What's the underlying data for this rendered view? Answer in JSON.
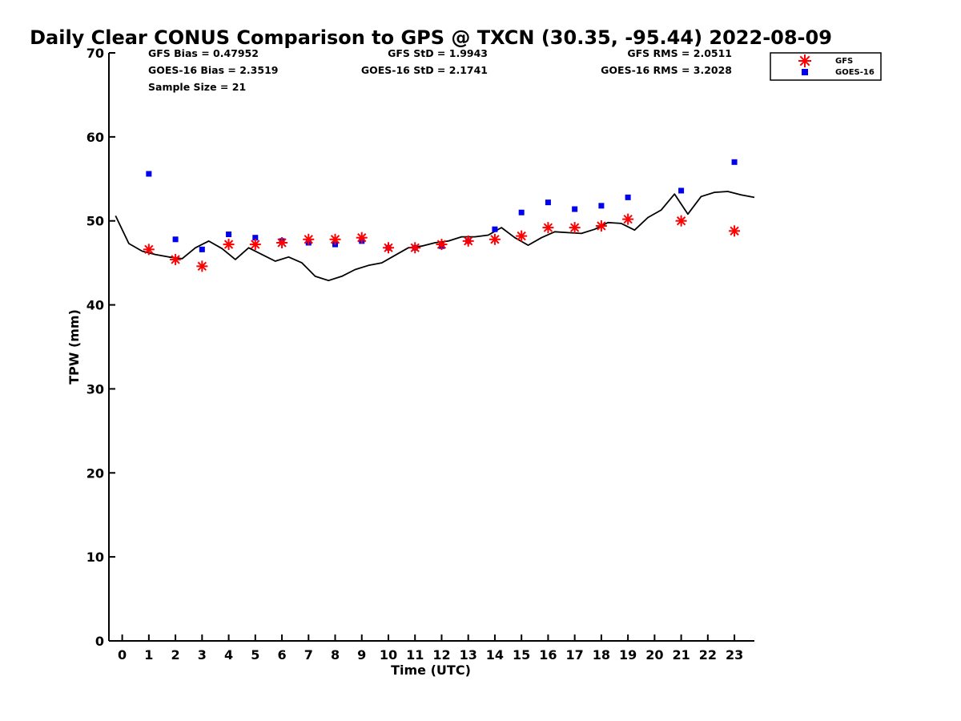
{
  "chart_data": {
    "type": "scatter",
    "title": "Daily Clear CONUS Comparison to GPS @ TXCN (30.35, -95.44) 2022-08-09",
    "xlabel": "Time (UTC)",
    "ylabel": "TPW (mm)",
    "xlim": [
      -0.5,
      23.75
    ],
    "ylim": [
      0,
      70
    ],
    "x_ticks": [
      0,
      1,
      2,
      3,
      4,
      5,
      6,
      7,
      8,
      9,
      10,
      11,
      12,
      13,
      14,
      15,
      16,
      17,
      18,
      19,
      20,
      21,
      22,
      23
    ],
    "y_ticks": [
      0,
      10,
      20,
      30,
      40,
      50,
      60,
      70
    ],
    "grid": false,
    "legend_position": "top-right",
    "stats": {
      "gfs_bias": "GFS Bias = 0.47952",
      "goes_bias": "GOES-16 Bias = 2.3519",
      "sample_size": "Sample Size = 21",
      "gfs_std": "GFS StD = 1.9943",
      "goes_std": "GOES-16 StD = 2.1741",
      "gfs_rms": "GFS RMS = 2.0511",
      "goes_rms": "GOES-16 RMS = 3.2028"
    },
    "series": [
      {
        "name": "GFS",
        "marker": "asterisk",
        "color": "#ff0000",
        "x": [
          1,
          2,
          3,
          4,
          5,
          6,
          7,
          8,
          9,
          10,
          11,
          12,
          13,
          14,
          15,
          16,
          17,
          18,
          19,
          21,
          23
        ],
        "y": [
          46.6,
          45.4,
          44.6,
          47.2,
          47.2,
          47.4,
          47.8,
          47.8,
          48.0,
          46.8,
          46.8,
          47.2,
          47.6,
          47.8,
          48.2,
          49.2,
          49.2,
          49.4,
          50.2,
          50.0,
          48.8
        ]
      },
      {
        "name": "GOES-16",
        "marker": "square",
        "color": "#0000ee",
        "x": [
          1,
          2,
          3,
          4,
          5,
          6,
          7,
          8,
          9,
          10,
          11,
          12,
          13,
          14,
          15,
          16,
          17,
          18,
          19,
          21,
          23
        ],
        "y": [
          55.6,
          47.8,
          46.6,
          48.4,
          48.0,
          47.6,
          47.4,
          47.2,
          47.6,
          46.8,
          46.8,
          47.0,
          47.6,
          49.0,
          51.0,
          52.2,
          51.4,
          51.8,
          52.8,
          53.6,
          57.0
        ]
      },
      {
        "type": "line",
        "color": "#000000",
        "x": [
          -0.25,
          0.25,
          0.75,
          1.25,
          1.75,
          2.25,
          2.75,
          3.25,
          3.75,
          4.25,
          4.75,
          5.25,
          5.75,
          6.25,
          6.75,
          7.25,
          7.75,
          8.25,
          8.75,
          9.25,
          9.75,
          10.25,
          10.75,
          11.25,
          11.75,
          12.25,
          12.75,
          13.25,
          13.75,
          14.25,
          14.75,
          15.25,
          15.75,
          16.25,
          16.75,
          17.25,
          17.75,
          18.25,
          18.75,
          19.25,
          19.75,
          20.25,
          20.75,
          21.25,
          21.75,
          22.25,
          22.75,
          23.25,
          23.75
        ],
        "y": [
          50.6,
          47.3,
          46.4,
          46.0,
          45.7,
          45.5,
          46.8,
          47.6,
          46.7,
          45.4,
          46.8,
          46.0,
          45.2,
          45.7,
          45.0,
          43.4,
          42.9,
          43.4,
          44.2,
          44.7,
          45.0,
          45.9,
          46.8,
          47.0,
          47.4,
          47.6,
          48.1,
          48.1,
          48.3,
          49.2,
          48.0,
          47.1,
          48.0,
          48.7,
          48.6,
          48.5,
          49.0,
          49.8,
          49.7,
          48.9,
          50.4,
          51.3,
          53.2,
          50.8,
          52.9,
          53.4,
          53.5,
          53.1,
          52.8
        ]
      }
    ]
  }
}
